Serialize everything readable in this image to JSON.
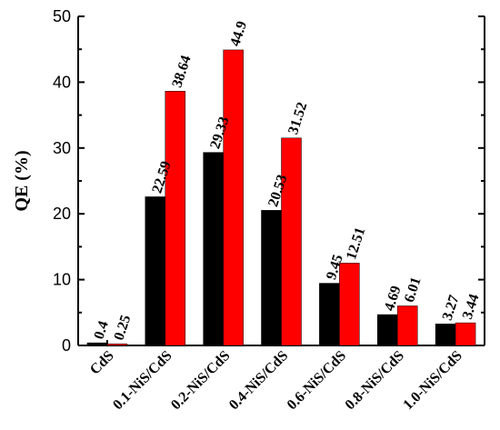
{
  "chart_data": {
    "type": "bar",
    "ylabel": "QE (%)",
    "xlabel": "",
    "ylim": [
      0,
      50
    ],
    "yticks": [
      0,
      10,
      20,
      30,
      40,
      50
    ],
    "grid": false,
    "categories": [
      "CdS",
      "0.1-NiS/CdS",
      "0.2-NiS/CdS",
      "0.4-NiS/CdS",
      "0.6-NiS/CdS",
      "0.8-NiS/CdS",
      "1.0-NiS/CdS"
    ],
    "series": [
      {
        "color": "#000000",
        "values": [
          0.4,
          22.59,
          29.33,
          20.53,
          9.45,
          4.69,
          3.27
        ],
        "labels": [
          "0.4",
          "22.59",
          "29.33",
          "20.53",
          "9.45",
          "4.69",
          "3.27"
        ]
      },
      {
        "color": "#ff0000",
        "values": [
          0.25,
          38.64,
          44.9,
          31.52,
          12.51,
          6.01,
          3.44
        ],
        "labels": [
          "0.25",
          "38.64",
          "44.9",
          "31.52",
          "12.51",
          "6.01",
          "3.44"
        ]
      }
    ]
  }
}
